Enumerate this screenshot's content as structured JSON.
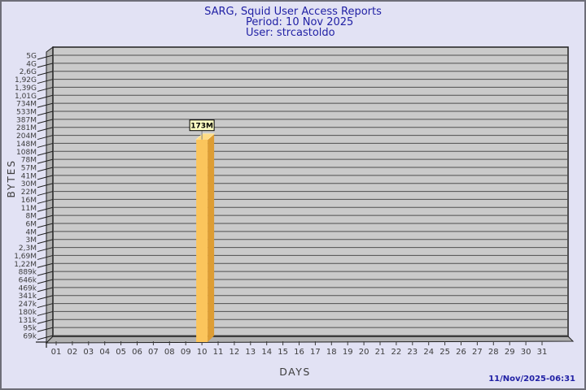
{
  "page": {
    "background": "#E2E2F4",
    "border_color": "#6E6E78"
  },
  "header": {
    "title": "SARG, Squid User Access Reports",
    "period": "Period: 10 Nov 2025",
    "user": "User: strcastoldo"
  },
  "footer": {
    "timestamp": "11/Nov/2025-06:31"
  },
  "chart_data": {
    "type": "bar",
    "title": "SARG, Squid User Access Reports",
    "subtitle_period": "Period: 10 Nov 2025",
    "subtitle_user": "User: strcastoldo",
    "xlabel": "DAYS",
    "ylabel": "BYTES",
    "y_scale": "log",
    "grid": "horizontal",
    "style": "3d-bar",
    "y_tick_labels": [
      "5G",
      "4G",
      "2,6G",
      "1,92G",
      "1,39G",
      "1,01G",
      "734M",
      "533M",
      "387M",
      "281M",
      "204M",
      "148M",
      "108M",
      "78M",
      "57M",
      "41M",
      "30M",
      "22M",
      "16M",
      "11M",
      "8M",
      "6M",
      "4M",
      "3M",
      "2,3M",
      "1,69M",
      "1,22M",
      "889k",
      "646k",
      "469k",
      "341k",
      "247k",
      "180k",
      "131k",
      "95k",
      "69k"
    ],
    "x_categories": [
      "01",
      "02",
      "03",
      "04",
      "05",
      "06",
      "07",
      "08",
      "09",
      "10",
      "11",
      "12",
      "13",
      "14",
      "15",
      "16",
      "17",
      "18",
      "19",
      "20",
      "21",
      "22",
      "23",
      "24",
      "25",
      "26",
      "27",
      "28",
      "29",
      "30",
      "31"
    ],
    "bars": [
      {
        "category": "10",
        "value_label": "173M",
        "value_bytes": 173000000
      }
    ],
    "colors": {
      "bar_front": "#FBC55C",
      "bar_side": "#DD9D34",
      "bar_top": "#FFDC86",
      "wall": "#CACACA",
      "wall_side": "#B0B0B0",
      "gridline": "#4F4F4F",
      "outline": "#1F1F1F",
      "value_box_bg": "#FFFFC4",
      "title_text": "#2121A5",
      "axis_text": "#3C3C3C"
    }
  }
}
